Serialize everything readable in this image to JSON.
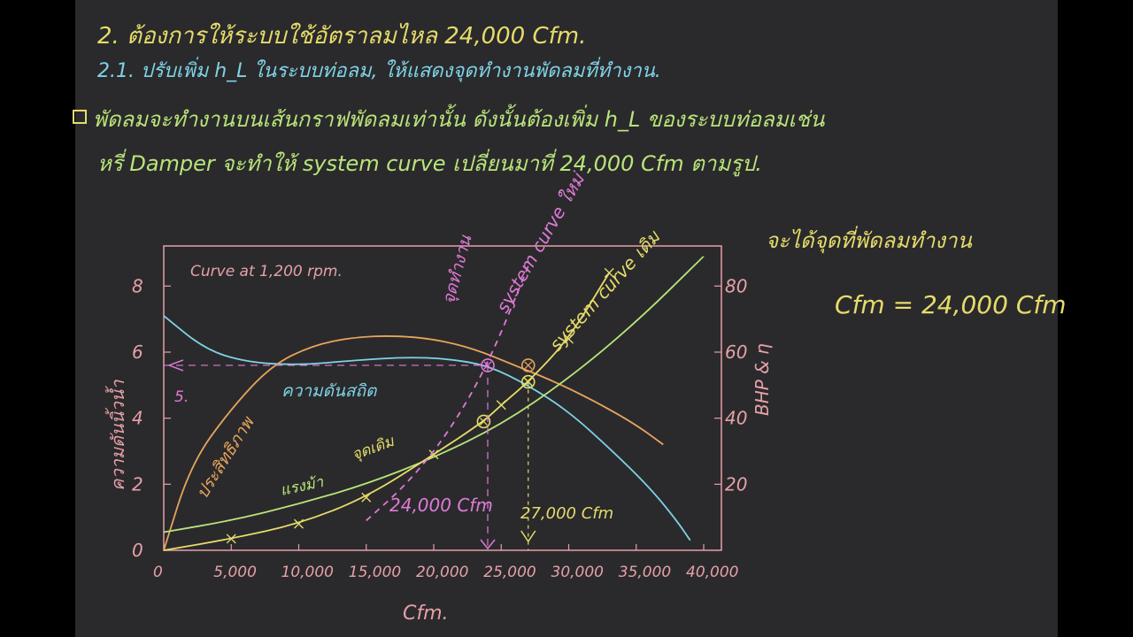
{
  "notes": {
    "line1": "2. ต้องการให้ระบบใช้อัตราลมไหล 24,000 Cfm.",
    "line2": "2.1. ปรับเพิ่ม h_L ในระบบท่อลม, ให้แสดงจุดทำงานพัดลมที่ทำงาน.",
    "line3": "พัดลมจะทำงานบนเส้นกราฟพัดลมเท่านั้น ดังนั้นต้องเพิ่ม h_L ของระบบท่อลมเช่น",
    "line4": "หรี่ Damper จะทำให้ system curve เปลี่ยนมาที่ 24,000 Cfm ตามรูป.",
    "right_note": "จะได้จุดที่พัดลมทำงาน",
    "cfm_equation": "Cfm = 24,000 Cfm"
  },
  "colors": {
    "board": "#2a2a2c",
    "frame": "#e6a0a8",
    "pink": "#e07ad6",
    "yellow": "#e6dc6a",
    "green": "#b9e47a",
    "orange": "#e8a45c",
    "cyan": "#7fd3e6",
    "blue": "#7fd3e6"
  },
  "chart_data": {
    "type": "line",
    "title": "Curve at 1,200 rpm.",
    "xlabel": "Cfm.",
    "ylabel_left": "ความดันนิ้วน้ำ",
    "ylabel_right": "BHP & η",
    "xlim": [
      0,
      40000
    ],
    "ylim_left": [
      0,
      9
    ],
    "ylim_right": [
      0,
      90
    ],
    "x_ticks": [
      {
        "value": 0,
        "label": "0"
      },
      {
        "value": 5000,
        "label": "5,000"
      },
      {
        "value": 10000,
        "label": "10,000"
      },
      {
        "value": 15000,
        "label": "15,000"
      },
      {
        "value": 20000,
        "label": "20,000"
      },
      {
        "value": 25000,
        "label": "25,000"
      },
      {
        "value": 30000,
        "label": "30,000"
      },
      {
        "value": 35000,
        "label": "35,000"
      },
      {
        "value": 40000,
        "label": "40,000"
      }
    ],
    "y_ticks_left": [
      {
        "value": 0,
        "label": "0"
      },
      {
        "value": 2,
        "label": "2"
      },
      {
        "value": 4,
        "label": "4"
      },
      {
        "value": 6,
        "label": "6"
      },
      {
        "value": 8,
        "label": "8"
      }
    ],
    "y_ticks_right": [
      {
        "value": 20,
        "label": "20"
      },
      {
        "value": 40,
        "label": "40"
      },
      {
        "value": 60,
        "label": "60"
      },
      {
        "value": 80,
        "label": "80"
      }
    ],
    "series": [
      {
        "name": "ความดันสถิต",
        "color": "#7fd3e6",
        "axis": "left",
        "x": [
          0,
          3000,
          6000,
          10000,
          14000,
          18000,
          21000,
          24000,
          27000,
          30000,
          33000,
          36000,
          38000,
          39000
        ],
        "y": [
          7.1,
          6.1,
          5.7,
          5.6,
          5.75,
          5.85,
          5.8,
          5.6,
          5.0,
          4.2,
          3.1,
          1.9,
          0.9,
          0.3
        ]
      },
      {
        "name": "ประสิทธิภาพ",
        "color": "#e8a45c",
        "axis": "right",
        "x": [
          0,
          2000,
          5000,
          8000,
          11000,
          14000,
          17000,
          20000,
          23000,
          26000,
          29000,
          32000,
          35000,
          37000
        ],
        "y": [
          0,
          26,
          43,
          56,
          62,
          64.5,
          65,
          64,
          61,
          56,
          51,
          45,
          38,
          32
        ]
      },
      {
        "name": "แรงม้า",
        "color": "#b9e47a",
        "axis": "right",
        "x": [
          0,
          5000,
          10000,
          15000,
          20000,
          25000,
          30000,
          35000,
          40000
        ],
        "y": [
          5.5,
          9,
          14,
          20,
          28,
          38,
          52,
          69,
          89
        ]
      },
      {
        "name": "system curve เดิม",
        "color": "#e6dc6a",
        "axis": "left",
        "x": [
          0,
          5000,
          10000,
          15000,
          20000,
          23700,
          25000,
          27000,
          30000,
          33000
        ],
        "y": [
          0,
          0.35,
          0.8,
          1.6,
          2.9,
          3.9,
          4.4,
          5.1,
          6.4,
          8.4
        ]
      },
      {
        "name": "system curve ใหม่",
        "color": "#e07ad6",
        "axis": "left",
        "x": [
          15000,
          18000,
          21000,
          24000,
          27000
        ],
        "y": [
          0.9,
          2.0,
          3.5,
          5.6,
          8.6
        ]
      }
    ],
    "annotations": [
      {
        "text": "24,000 Cfm",
        "color": "#e07ad6"
      },
      {
        "text": "27,000 Cfm",
        "color": "#e6dc6a"
      },
      {
        "text": "ความดันสถิต",
        "color": "#7fd3e6"
      },
      {
        "text": "ประสิทธิภาพ",
        "color": "#e8a45c"
      },
      {
        "text": "แรงม้า",
        "color": "#b9e47a"
      },
      {
        "text": "system curve เดิม",
        "color": "#e6dc6a"
      },
      {
        "text": "system curve ใหม่",
        "color": "#e07ad6"
      },
      {
        "text": "จุดทำงาน",
        "color": "#e07ad6"
      },
      {
        "text": "จุดเดิม",
        "color": "#e6dc6a"
      },
      {
        "text": "5.",
        "color": "#e07ad6"
      }
    ],
    "points": [
      {
        "name": "new-operating-point",
        "x": 24000,
        "y": 5.6
      },
      {
        "name": "old-operating-point",
        "x": 27000,
        "y": 5.1
      },
      {
        "name": "old-curve-24000",
        "x": 23700,
        "y": 3.9
      },
      {
        "name": "efficiency-marker",
        "x": 27000,
        "y": 5.6
      }
    ],
    "grid": false
  }
}
